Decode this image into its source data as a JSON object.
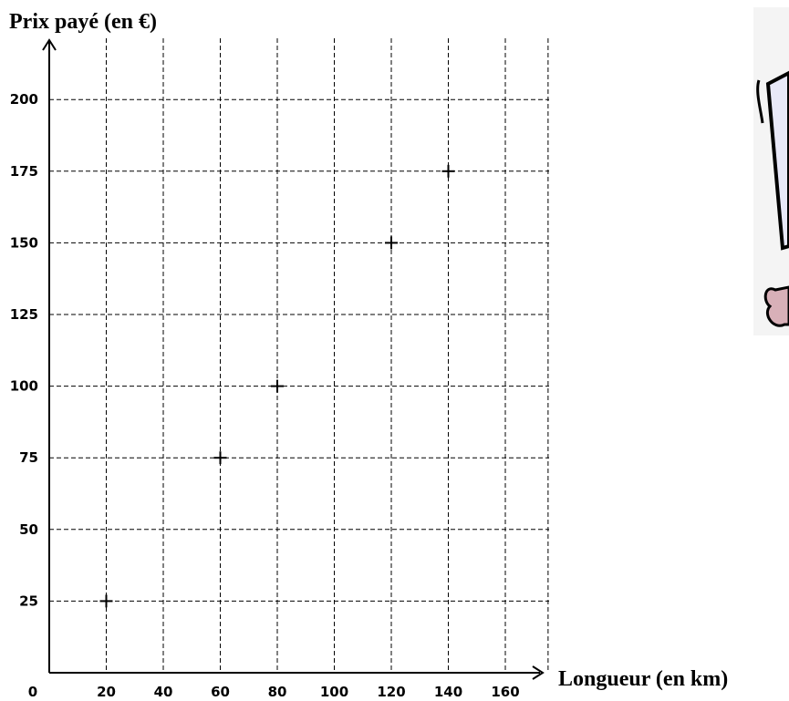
{
  "chart_data": {
    "type": "scatter",
    "xlabel": "Longueur (en km)",
    "ylabel": "Prix payé (en €)",
    "origin_label": "0",
    "x_ticks": [
      20,
      40,
      60,
      80,
      100,
      120,
      140,
      160
    ],
    "y_ticks": [
      25,
      50,
      75,
      100,
      125,
      150,
      175,
      200
    ],
    "xlim": [
      0,
      175
    ],
    "ylim": [
      0,
      215
    ],
    "grid": true,
    "marker": "plus",
    "points": [
      {
        "x": 20,
        "y": 25
      },
      {
        "x": 60,
        "y": 75
      },
      {
        "x": 80,
        "y": 100
      },
      {
        "x": 120,
        "y": 150
      },
      {
        "x": 140,
        "y": 175
      }
    ]
  },
  "illustration": {
    "colors": [
      "#000000",
      "#e8e8f8",
      "#d8b0b8"
    ]
  }
}
